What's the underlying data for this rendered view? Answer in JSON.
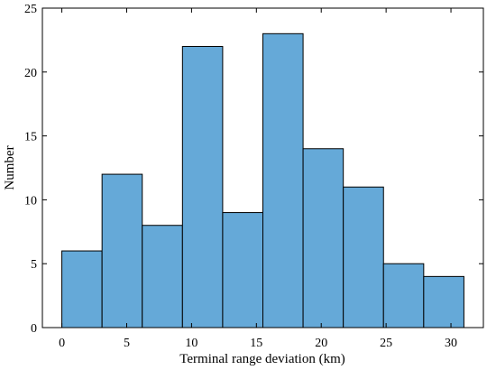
{
  "chart_data": {
    "type": "bar",
    "histogram": true,
    "bin_edges": [
      0,
      3.1,
      6.2,
      9.3,
      12.4,
      15.5,
      18.6,
      21.7,
      24.8,
      27.9,
      31.0
    ],
    "values": [
      6,
      12,
      8,
      22,
      9,
      23,
      14,
      11,
      5,
      4
    ],
    "xlabel": "Terminal range deviation (km)",
    "ylabel": "Number",
    "xlim": [
      -1.5,
      32.5
    ],
    "ylim": [
      0,
      25
    ],
    "xticks": [
      0,
      5,
      10,
      15,
      20,
      25,
      30
    ],
    "yticks": [
      0,
      5,
      10,
      15,
      20,
      25
    ],
    "bar_color": "#65a9d8",
    "grid": false,
    "legend": "none"
  }
}
